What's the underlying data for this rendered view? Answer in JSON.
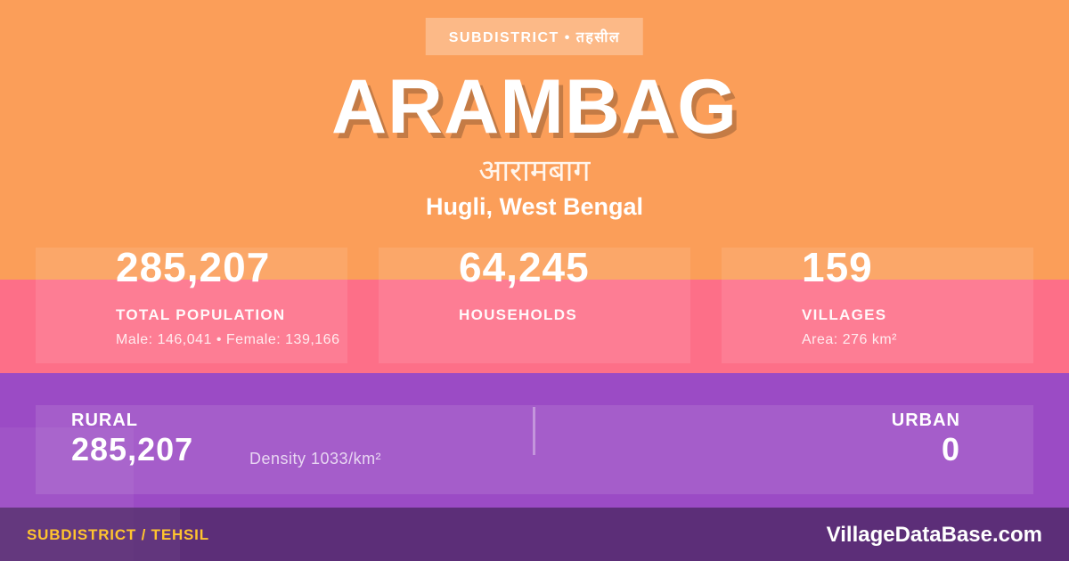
{
  "colors": {
    "orange": "#FB9E59",
    "pink": "#FD6F88",
    "purple": "#9B4BC5",
    "footer_purple": "#5C2E78",
    "accent_yellow": "#FFC42E",
    "text_white": "#FFFFFF"
  },
  "badge": {
    "label": "SUBDISTRICT • तहसील"
  },
  "header": {
    "title": "ARAMBAG",
    "local_name": "आरामबाग",
    "location": "Hugli, West Bengal"
  },
  "stats": [
    {
      "value": "285,207",
      "label": "TOTAL POPULATION",
      "detail": "Male: 146,041 • Female: 139,166"
    },
    {
      "value": "64,245",
      "label": "HOUSEHOLDS",
      "detail": ""
    },
    {
      "value": "159",
      "label": "VILLAGES",
      "detail": "Area: 276 km²"
    }
  ],
  "split": {
    "rural_label": "RURAL",
    "rural_value": "285,207",
    "density": "Density 1033/km²",
    "urban_label": "URBAN",
    "urban_value": "0"
  },
  "footer": {
    "type_label": "SUBDISTRICT / TEHSIL",
    "brand": "VillageDataBase.com"
  }
}
